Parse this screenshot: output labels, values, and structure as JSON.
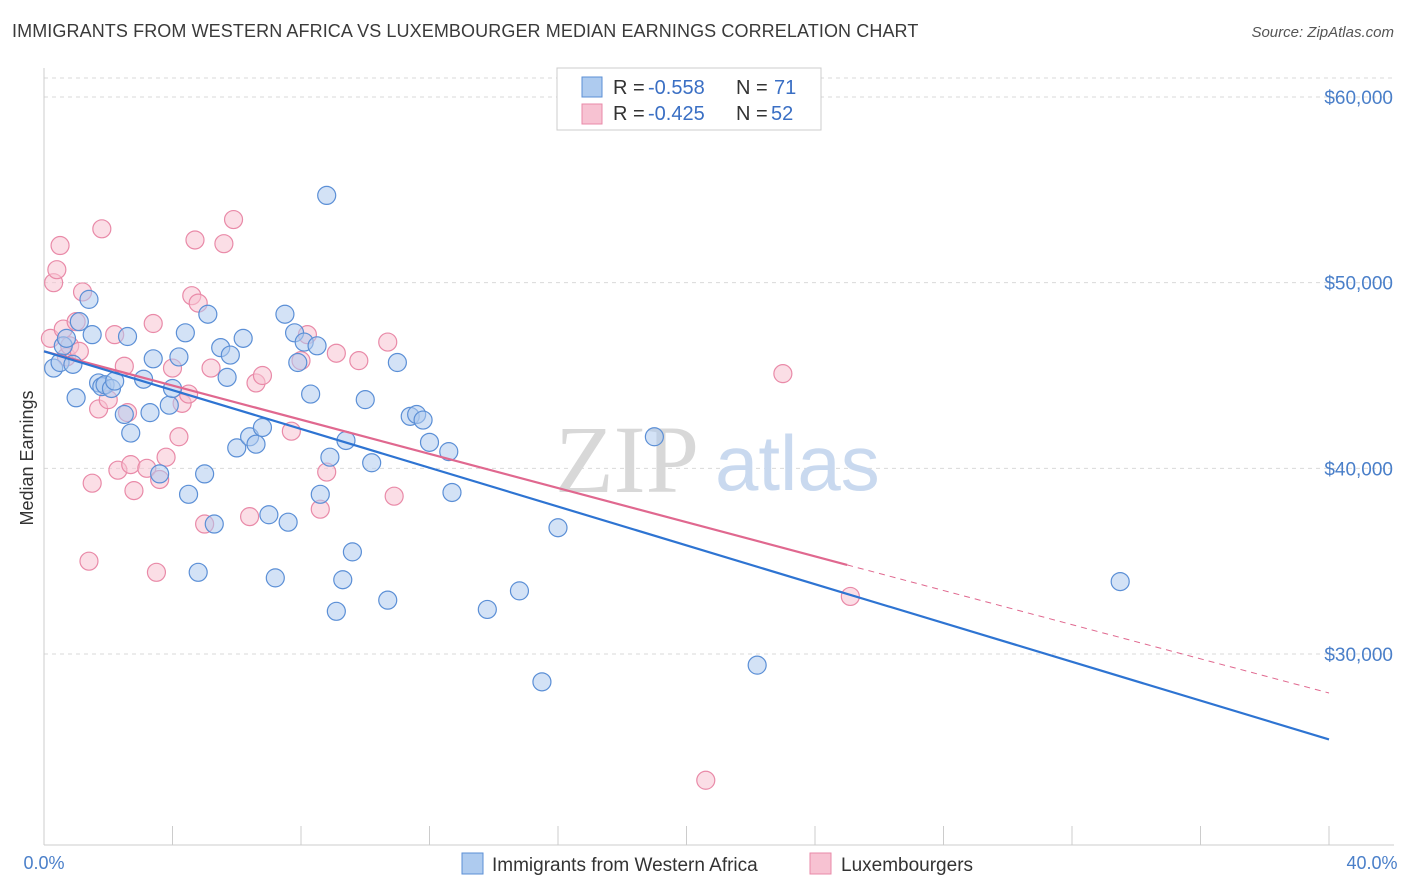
{
  "header": {
    "title": "IMMIGRANTS FROM WESTERN AFRICA VS LUXEMBOURGER MEDIAN EARNINGS CORRELATION CHART",
    "source": "Source: ZipAtlas.com"
  },
  "watermark": {
    "zip": "ZIP",
    "atlas": "atlas"
  },
  "legend": {
    "rows": [
      {
        "r_label": "R =",
        "r_value": "-0.558",
        "n_label": "N =",
        "n_value": "71"
      },
      {
        "r_label": "R =",
        "r_value": "-0.425",
        "n_label": "N =",
        "n_value": "52"
      }
    ]
  },
  "colors": {
    "blue_fill": "#aecbef",
    "blue_stroke": "#5b8fd6",
    "blue_line": "#2e74d2",
    "pink_fill": "#f7c2d2",
    "pink_stroke": "#e98aa8",
    "pink_line": "#e0688f",
    "grid": "#d9d9d9",
    "tick_text": "#4a7fc9"
  },
  "chart_data": {
    "type": "scatter",
    "title": "IMMIGRANTS FROM WESTERN AFRICA VS LUXEMBOURGER MEDIAN EARNINGS CORRELATION CHART",
    "xlabel": "",
    "ylabel": "Median Earnings",
    "xlim": [
      0,
      40
    ],
    "ylim": [
      21000,
      62000
    ],
    "x_tick_labels": [
      "0.0%",
      "40.0%"
    ],
    "y_ticks": [
      30000,
      40000,
      50000,
      60000
    ],
    "y_tick_labels": [
      "$30,000",
      "$40,000",
      "$50,000",
      "$60,000"
    ],
    "grid": true,
    "legend_position": "top-center",
    "series": [
      {
        "name": "Immigrants from Western Africa",
        "color": "#5b8fd6",
        "r": -0.558,
        "n": 71,
        "trend": {
          "x": [
            0,
            40
          ],
          "y": [
            46300,
            25400
          ]
        },
        "points": [
          [
            0.3,
            45400
          ],
          [
            0.5,
            45700
          ],
          [
            0.6,
            46600
          ],
          [
            0.9,
            45600
          ],
          [
            1.0,
            43800
          ],
          [
            1.1,
            47900
          ],
          [
            1.4,
            49100
          ],
          [
            1.5,
            47200
          ],
          [
            1.7,
            44600
          ],
          [
            1.8,
            44400
          ],
          [
            1.9,
            44500
          ],
          [
            2.1,
            44300
          ],
          [
            2.5,
            42900
          ],
          [
            2.6,
            47100
          ],
          [
            2.7,
            41900
          ],
          [
            3.1,
            44800
          ],
          [
            3.3,
            43000
          ],
          [
            3.4,
            45900
          ],
          [
            3.6,
            39700
          ],
          [
            3.9,
            43400
          ],
          [
            4.0,
            44300
          ],
          [
            4.2,
            46000
          ],
          [
            4.4,
            47300
          ],
          [
            4.5,
            38600
          ],
          [
            4.8,
            34400
          ],
          [
            5.0,
            39700
          ],
          [
            5.1,
            48300
          ],
          [
            5.3,
            37000
          ],
          [
            5.5,
            46500
          ],
          [
            5.7,
            44900
          ],
          [
            5.8,
            46100
          ],
          [
            6.0,
            41100
          ],
          [
            6.2,
            47000
          ],
          [
            6.4,
            41700
          ],
          [
            6.6,
            41300
          ],
          [
            6.8,
            42200
          ],
          [
            7.0,
            37500
          ],
          [
            7.2,
            34100
          ],
          [
            7.5,
            48300
          ],
          [
            7.6,
            37100
          ],
          [
            7.8,
            47300
          ],
          [
            7.9,
            45700
          ],
          [
            8.1,
            46800
          ],
          [
            8.3,
            44000
          ],
          [
            8.5,
            46600
          ],
          [
            8.6,
            38600
          ],
          [
            8.8,
            54700
          ],
          [
            8.9,
            40600
          ],
          [
            9.1,
            32300
          ],
          [
            9.3,
            34000
          ],
          [
            9.4,
            41500
          ],
          [
            9.6,
            35500
          ],
          [
            10.0,
            43700
          ],
          [
            10.2,
            40300
          ],
          [
            10.7,
            32900
          ],
          [
            11.0,
            45700
          ],
          [
            11.4,
            42800
          ],
          [
            11.6,
            42900
          ],
          [
            11.8,
            42600
          ],
          [
            12.0,
            41400
          ],
          [
            12.6,
            40900
          ],
          [
            12.7,
            38700
          ],
          [
            13.8,
            32400
          ],
          [
            14.8,
            33400
          ],
          [
            15.5,
            28500
          ],
          [
            16.0,
            36800
          ],
          [
            19.0,
            41700
          ],
          [
            22.2,
            29400
          ],
          [
            33.5,
            33900
          ],
          [
            0.7,
            47000
          ],
          [
            2.2,
            44700
          ]
        ]
      },
      {
        "name": "Luxembourgers",
        "color": "#e98aa8",
        "r": -0.425,
        "n": 52,
        "trend": {
          "x": [
            0,
            25
          ],
          "y": [
            46300,
            34800
          ]
        },
        "trend_dashed": {
          "x": [
            25,
            40
          ],
          "y": [
            34800,
            27900
          ]
        },
        "points": [
          [
            0.2,
            47000
          ],
          [
            0.3,
            50000
          ],
          [
            0.4,
            50700
          ],
          [
            0.5,
            52000
          ],
          [
            0.6,
            47500
          ],
          [
            0.7,
            46000
          ],
          [
            0.8,
            46600
          ],
          [
            1.0,
            47900
          ],
          [
            1.2,
            49500
          ],
          [
            1.4,
            35000
          ],
          [
            1.5,
            39200
          ],
          [
            1.7,
            43200
          ],
          [
            1.8,
            52900
          ],
          [
            2.0,
            43700
          ],
          [
            2.2,
            47200
          ],
          [
            2.3,
            39900
          ],
          [
            2.5,
            45500
          ],
          [
            2.6,
            43000
          ],
          [
            2.7,
            40200
          ],
          [
            2.8,
            38800
          ],
          [
            3.2,
            40000
          ],
          [
            3.4,
            47800
          ],
          [
            3.5,
            34400
          ],
          [
            3.6,
            39400
          ],
          [
            3.8,
            40600
          ],
          [
            4.0,
            45400
          ],
          [
            4.2,
            41700
          ],
          [
            4.3,
            43500
          ],
          [
            4.5,
            44000
          ],
          [
            4.6,
            49300
          ],
          [
            4.7,
            52300
          ],
          [
            4.8,
            48900
          ],
          [
            5.0,
            37000
          ],
          [
            5.2,
            45400
          ],
          [
            5.6,
            52100
          ],
          [
            5.9,
            53400
          ],
          [
            6.4,
            37400
          ],
          [
            6.6,
            44600
          ],
          [
            6.8,
            45000
          ],
          [
            7.7,
            42000
          ],
          [
            8.0,
            45800
          ],
          [
            8.2,
            47200
          ],
          [
            8.6,
            37800
          ],
          [
            8.8,
            39800
          ],
          [
            9.1,
            46200
          ],
          [
            9.8,
            45800
          ],
          [
            10.7,
            46800
          ],
          [
            10.9,
            38500
          ],
          [
            23.0,
            45100
          ],
          [
            25.1,
            33100
          ],
          [
            20.6,
            23200
          ],
          [
            1.1,
            46300
          ]
        ]
      }
    ]
  },
  "bottom_legend": {
    "series_1": "Immigrants from Western Africa",
    "series_2": "Luxembourgers"
  },
  "axis": {
    "x_left_label": "0.0%",
    "x_right_label": "40.0%"
  }
}
